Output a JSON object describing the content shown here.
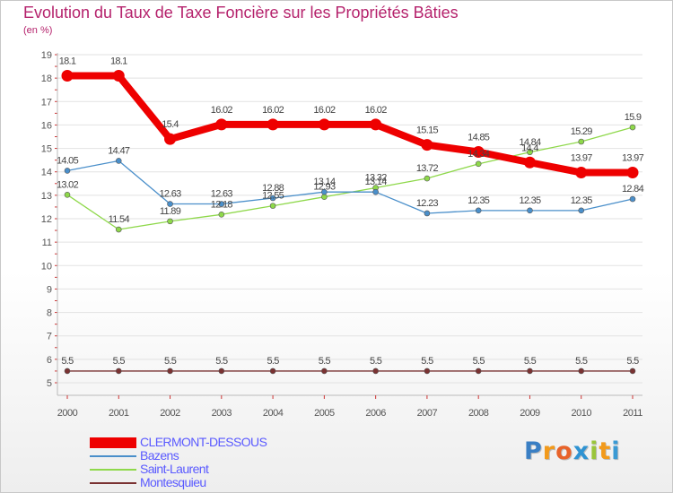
{
  "title": "Evolution du Taux de Taxe Foncière sur les Propriétés Bâties",
  "subtitle": "(en %)",
  "brand": {
    "letters": [
      "P",
      "r",
      "o",
      "x",
      "i",
      "t",
      "i"
    ],
    "colors": [
      "#3a7fc4",
      "#f29a1c",
      "#e8632a",
      "#2f93d2",
      "#9ac53a",
      "#f29a1c",
      "#3a9ad4"
    ]
  },
  "chart_data": {
    "type": "line",
    "title": "Evolution du Taux de Taxe Foncière sur les Propriétés Bâties",
    "ylabel": "(en %)",
    "xlabel": "",
    "categories": [
      "2000",
      "2001",
      "2002",
      "2003",
      "2004",
      "2005",
      "2006",
      "2007",
      "2008",
      "2009",
      "2010",
      "2011"
    ],
    "ylim": [
      5,
      19
    ],
    "yticks": [
      "5",
      "6",
      "7",
      "8",
      "9",
      "10",
      "11",
      "12",
      "13",
      "14",
      "15",
      "16",
      "17",
      "18",
      "19"
    ],
    "grid": "horizontal",
    "legend": "bottom-left",
    "series": [
      {
        "name": "CLERMONT-DESSOUS",
        "color": "#ee0000",
        "values": [
          18.1,
          18.1,
          15.4,
          16.02,
          16.02,
          16.02,
          16.02,
          15.15,
          14.85,
          14.4,
          13.97,
          13.97
        ],
        "labels": [
          "18.1",
          "18.1",
          "15.4",
          "16.02",
          "16.02",
          "16.02",
          "16.02",
          "15.15",
          "14.85",
          "14.4",
          "13.97",
          "13.97"
        ]
      },
      {
        "name": "Bazens",
        "color": "#4a8fca",
        "values": [
          14.05,
          14.47,
          12.63,
          12.63,
          12.88,
          13.14,
          13.14,
          12.23,
          12.35,
          12.35,
          12.35,
          12.84
        ],
        "labels": [
          "14.05",
          "14.47",
          "12.63",
          "12.63",
          "12.88",
          "13.14",
          "13.14",
          "12.23",
          "12.35",
          "12.35",
          "12.35",
          "12.84"
        ]
      },
      {
        "name": "Saint-Laurent",
        "color": "#8ed84a",
        "values": [
          13.02,
          11.54,
          11.89,
          12.18,
          12.55,
          12.93,
          13.32,
          13.72,
          14.34,
          14.84,
          15.29,
          15.9
        ],
        "labels": [
          "13.02",
          "11.54",
          "11.89",
          "12.18",
          "12.55",
          "12.93",
          "13.32",
          "13.72",
          "14.34",
          "14.84",
          "15.29",
          "15.9"
        ]
      },
      {
        "name": "Montesquieu",
        "color": "#7a3232",
        "values": [
          5.5,
          5.5,
          5.5,
          5.5,
          5.5,
          5.5,
          5.5,
          5.5,
          5.5,
          5.5,
          5.5,
          5.5
        ],
        "labels": [
          "5.5",
          "5.5",
          "5.5",
          "5.5",
          "5.5",
          "5.5",
          "5.5",
          "5.5",
          "5.5",
          "5.5",
          "5.5",
          "5.5"
        ]
      }
    ]
  }
}
